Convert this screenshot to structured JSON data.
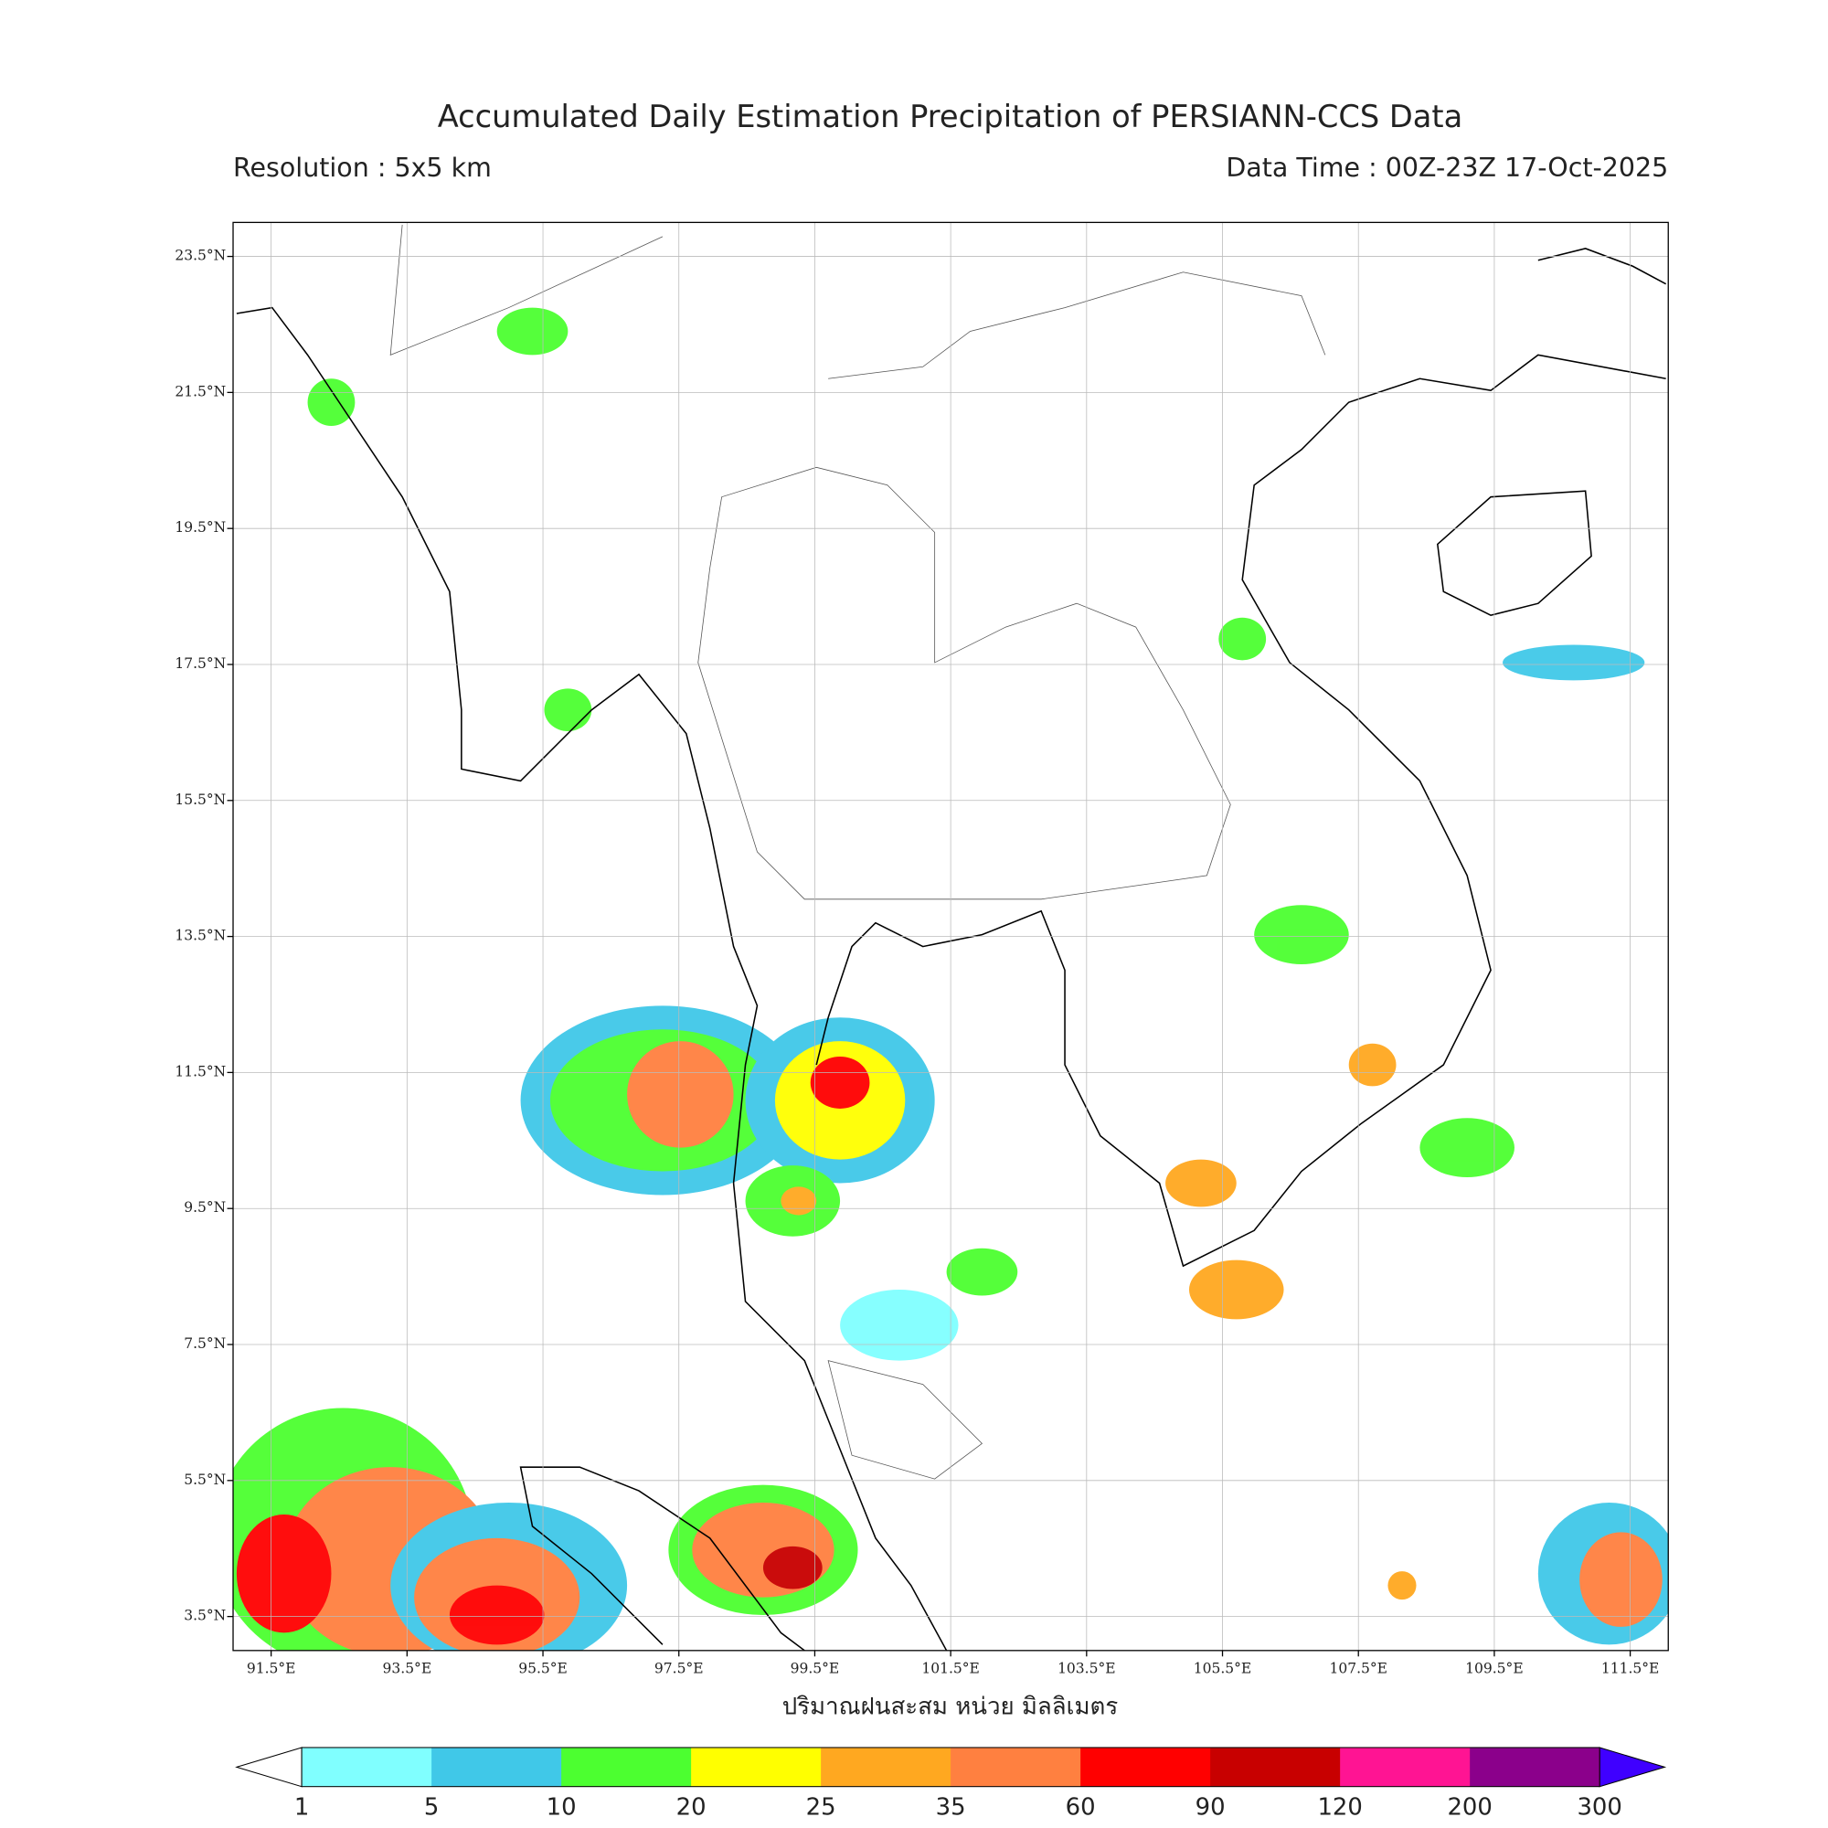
{
  "map": {
    "title": "Accumulated Daily Estimation Precipitation of PERSIANN-CCS Data",
    "subtitle_left": "Resolution : 5x5 km",
    "subtitle_right": "Data Time : 00Z-23Z 17-Oct-2025",
    "xlim": [
      90.94,
      112.06
    ],
    "ylim": [
      3.0,
      24.0
    ],
    "xticks": [
      {
        "value": 91.5,
        "label": "91.5°E"
      },
      {
        "value": 93.5,
        "label": "93.5°E"
      },
      {
        "value": 95.5,
        "label": "95.5°E"
      },
      {
        "value": 97.5,
        "label": "97.5°E"
      },
      {
        "value": 99.5,
        "label": "99.5°E"
      },
      {
        "value": 101.5,
        "label": "101.5°E"
      },
      {
        "value": 103.5,
        "label": "103.5°E"
      },
      {
        "value": 105.5,
        "label": "105.5°E"
      },
      {
        "value": 107.5,
        "label": "107.5°E"
      },
      {
        "value": 109.5,
        "label": "109.5°E"
      },
      {
        "value": 111.5,
        "label": "111.5°E"
      }
    ],
    "yticks": [
      {
        "value": 3.5,
        "label": "3.5°N"
      },
      {
        "value": 5.5,
        "label": "5.5°N"
      },
      {
        "value": 7.5,
        "label": "7.5°N"
      },
      {
        "value": 9.5,
        "label": "9.5°N"
      },
      {
        "value": 11.5,
        "label": "11.5°N"
      },
      {
        "value": 13.5,
        "label": "13.5°N"
      },
      {
        "value": 15.5,
        "label": "15.5°N"
      },
      {
        "value": 17.5,
        "label": "17.5°N"
      },
      {
        "value": 19.5,
        "label": "19.5°N"
      },
      {
        "value": 21.5,
        "label": "21.5°N"
      },
      {
        "value": 23.5,
        "label": "23.5°N"
      }
    ],
    "grid": true,
    "xlabel": "ปริมาณฝนสะสม หน่วย มิลลิเมตร",
    "colorbar": {
      "levels": [
        1,
        5,
        10,
        20,
        25,
        35,
        60,
        90,
        120,
        200,
        300
      ],
      "colors": [
        "#80ffff",
        "#40c8e8",
        "#4cff30",
        "#ffff00",
        "#ffa820",
        "#ff8040",
        "#ff0000",
        "#c80000",
        "#ff1493",
        "#8b008b"
      ],
      "under_color": "#ffffff",
      "over_color": "#3f00ff"
    }
  }
}
